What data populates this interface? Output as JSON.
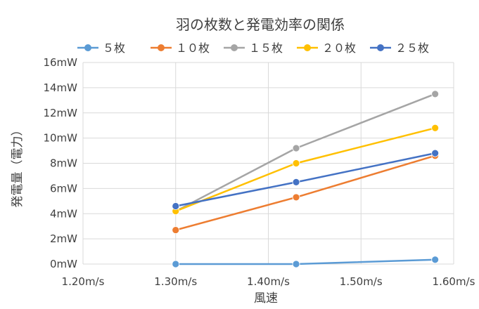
{
  "chart_data": {
    "type": "line",
    "title": "羽の枚数と発電効率の関係",
    "xlabel": "風速",
    "ylabel": "発電量（電力）",
    "xlim": [
      1.2,
      1.6
    ],
    "ylim": [
      0,
      16
    ],
    "x_ticks": [
      "1.20m/s",
      "1.30m/s",
      "1.40m/s",
      "1.50m/s",
      "1.60m/s"
    ],
    "y_ticks": [
      "0mW",
      "2mW",
      "4mW",
      "6mW",
      "8mW",
      "10mW",
      "12mW",
      "14mW",
      "16mW"
    ],
    "grid": true,
    "legend_position": "top",
    "series": [
      {
        "name": "５枚",
        "color": "#5b9bd5",
        "x": [
          1.3,
          1.43,
          1.58
        ],
        "y": [
          0.0,
          0.0,
          0.35
        ]
      },
      {
        "name": "１０枚",
        "color": "#ed7d31",
        "x": [
          1.3,
          1.43,
          1.58
        ],
        "y": [
          2.7,
          5.3,
          8.6
        ]
      },
      {
        "name": "１５枚",
        "color": "#a5a5a5",
        "x": [
          1.3,
          1.43,
          1.58
        ],
        "y": [
          4.2,
          9.2,
          13.5
        ]
      },
      {
        "name": "２０枚",
        "color": "#ffc000",
        "x": [
          1.3,
          1.43,
          1.58
        ],
        "y": [
          4.2,
          8.0,
          10.8
        ]
      },
      {
        "name": "２５枚",
        "color": "#4472c4",
        "x": [
          1.3,
          1.43,
          1.58
        ],
        "y": [
          4.6,
          6.5,
          8.8
        ]
      }
    ]
  }
}
